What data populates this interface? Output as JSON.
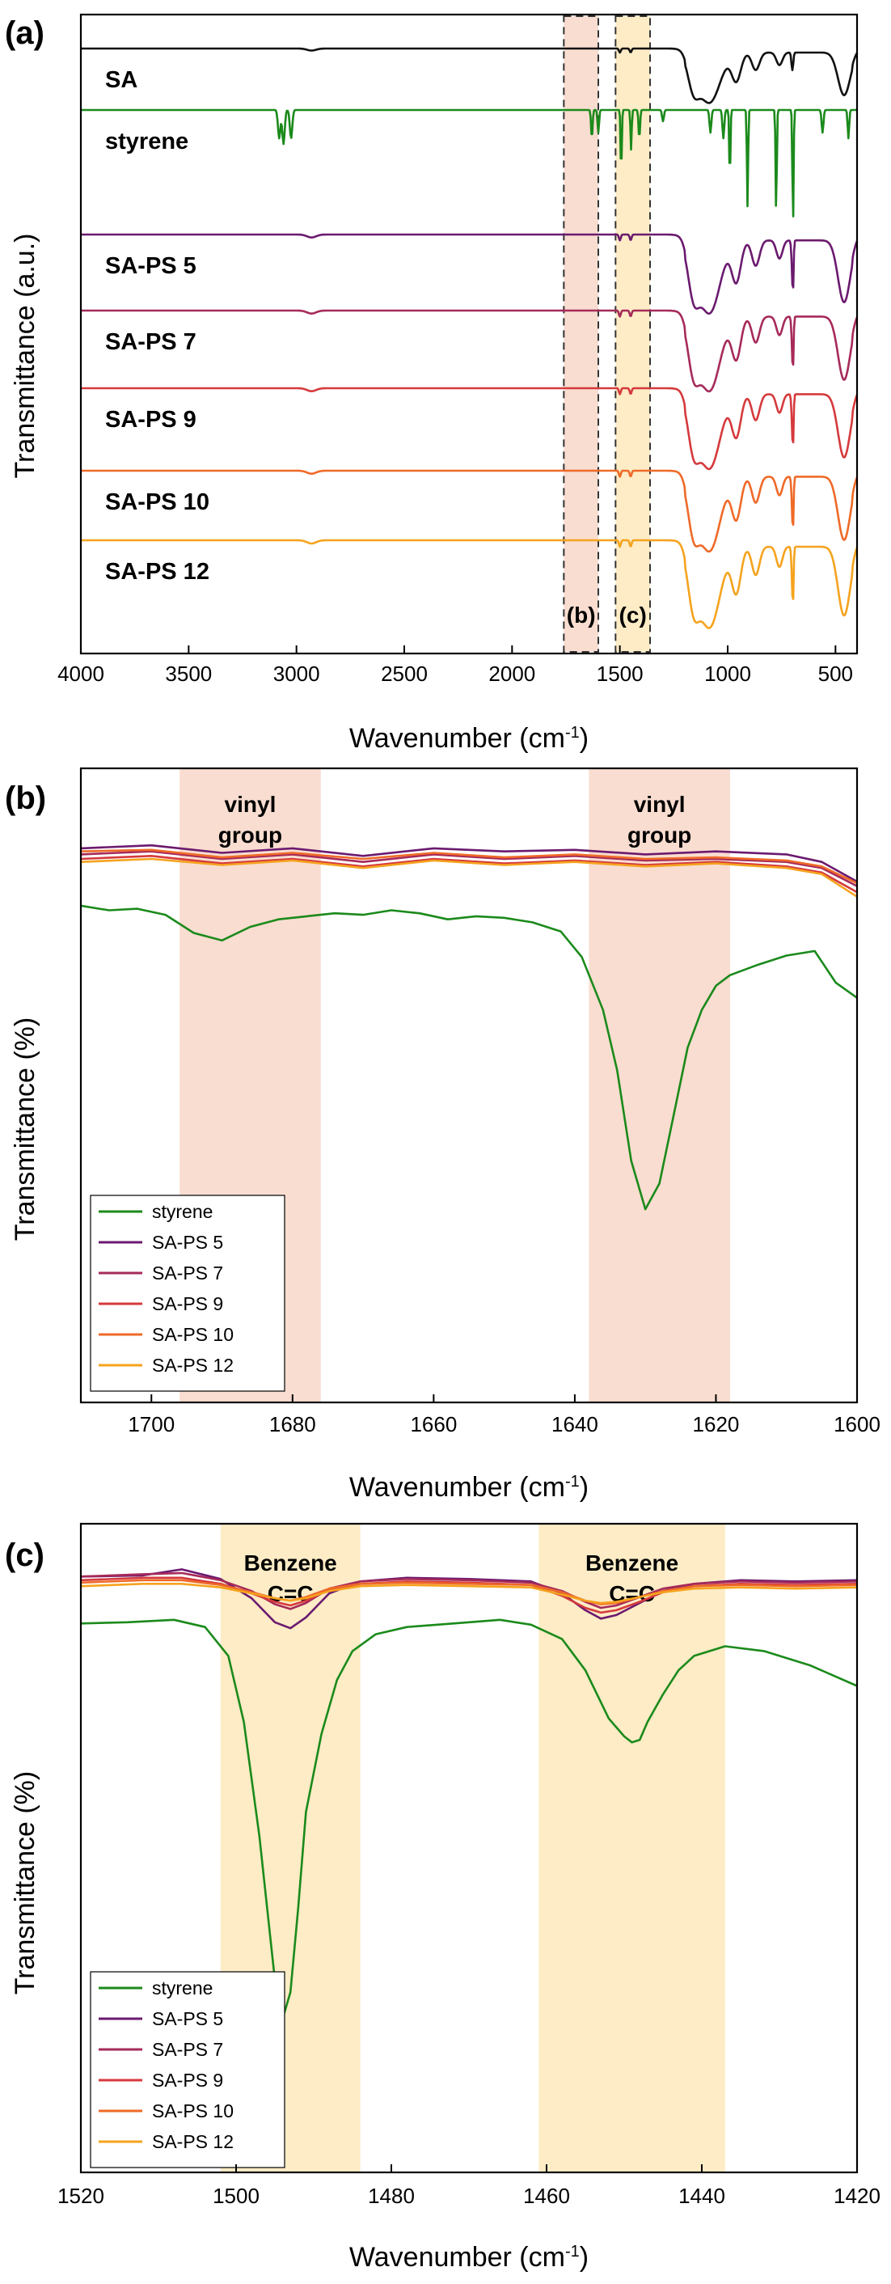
{
  "colors": {
    "SA": "#111111",
    "styrene": "#1b8a1b",
    "SA-PS 5": "#6b1a6f",
    "SA-PS 7": "#a62a5a",
    "SA-PS 9": "#d53a3d",
    "SA-PS 10": "#ef6a28",
    "SA-PS 12": "#f5a31e",
    "vinyl_band": "#f9ddd0",
    "benzene_band": "#fdecc6"
  },
  "chart_data": [
    {
      "panel_label": "(a)",
      "type": "line",
      "xlabel": "Wavenumber (cm",
      "xlabel_sup": "-1",
      "xlabel_end": ")",
      "ylabel": "Transmittance (a.u.)",
      "xlim": [
        4000,
        400
      ],
      "x_ticks": [
        "4000",
        "3500",
        "3000",
        "2500",
        "2000",
        "1500",
        "1000",
        "500"
      ],
      "regions": [
        {
          "label": "(b)",
          "x_range": [
            1760,
            1600
          ],
          "style": "dashed box, shaded"
        },
        {
          "label": "(c)",
          "x_range": [
            1520,
            1360
          ],
          "style": "dashed box, shaded"
        }
      ],
      "series": [
        {
          "name": "SA"
        },
        {
          "name": "styrene"
        },
        {
          "name": "SA-PS 5"
        },
        {
          "name": "SA-PS 7"
        },
        {
          "name": "SA-PS 9"
        },
        {
          "name": "SA-PS 10"
        },
        {
          "name": "SA-PS 12"
        }
      ]
    },
    {
      "panel_label": "(b)",
      "type": "line",
      "xlabel": "Wavenumber (cm",
      "xlabel_sup": "-1",
      "xlabel_end": ")",
      "ylabel": "Transmittance (%)",
      "xlim": [
        1710,
        1600
      ],
      "x_ticks": [
        "1700",
        "1680",
        "1660",
        "1640",
        "1620",
        "1600"
      ],
      "bands": [
        {
          "label_line1": "vinyl",
          "label_line2": "group",
          "x_range": [
            1696,
            1676
          ]
        },
        {
          "label_line1": "vinyl",
          "label_line2": "group",
          "x_range": [
            1638,
            1618
          ]
        }
      ],
      "legend": [
        "styrene",
        "SA-PS 5",
        "SA-PS 7",
        "SA-PS 9",
        "SA-PS 10",
        "SA-PS 12"
      ],
      "legend_position": "bottom-left",
      "series": [
        {
          "name": "styrene",
          "x": [
            1710,
            1706,
            1702,
            1698,
            1694,
            1690,
            1686,
            1682,
            1678,
            1674,
            1670,
            1666,
            1662,
            1658,
            1654,
            1650,
            1646,
            1642,
            1639,
            1636,
            1634,
            1632,
            1630,
            1628,
            1626,
            1624,
            1622,
            1620,
            1618,
            1614,
            1610,
            1606,
            1603,
            1600
          ],
          "y": [
            94.9,
            94.6,
            94.7,
            94.3,
            93.1,
            92.6,
            93.5,
            94.0,
            94.2,
            94.4,
            94.3,
            94.6,
            94.4,
            94.0,
            94.2,
            94.1,
            93.8,
            93.2,
            91.5,
            88.0,
            84.0,
            78.0,
            74.8,
            76.5,
            81.0,
            85.5,
            88.0,
            89.6,
            90.3,
            91.0,
            91.6,
            91.9,
            89.8,
            88.8
          ]
        },
        {
          "name": "SA-PS 5",
          "x": [
            1710,
            1700,
            1690,
            1680,
            1670,
            1660,
            1650,
            1640,
            1630,
            1620,
            1610,
            1605,
            1600
          ],
          "y": [
            98.7,
            98.9,
            98.4,
            98.7,
            98.2,
            98.7,
            98.5,
            98.6,
            98.3,
            98.5,
            98.3,
            97.8,
            96.5
          ]
        },
        {
          "name": "SA-PS 7",
          "x": [
            1710,
            1700,
            1690,
            1680,
            1670,
            1660,
            1650,
            1640,
            1630,
            1620,
            1610,
            1605,
            1600
          ],
          "y": [
            98.3,
            98.5,
            98.0,
            98.3,
            97.8,
            98.3,
            98.0,
            98.2,
            97.9,
            98.0,
            97.8,
            97.4,
            96.2
          ]
        },
        {
          "name": "SA-PS 9",
          "x": [
            1710,
            1700,
            1690,
            1680,
            1670,
            1660,
            1650,
            1640,
            1630,
            1620,
            1610,
            1605,
            1600
          ],
          "y": [
            98.0,
            98.2,
            97.7,
            98.0,
            97.5,
            98.0,
            97.7,
            97.9,
            97.6,
            97.8,
            97.5,
            97.1,
            95.8
          ]
        },
        {
          "name": "SA-PS 10",
          "x": [
            1710,
            1700,
            1690,
            1680,
            1670,
            1660,
            1650,
            1640,
            1630,
            1620,
            1610,
            1605,
            1600
          ],
          "y": [
            98.5,
            98.6,
            98.1,
            98.4,
            98.0,
            98.4,
            98.1,
            98.3,
            98.0,
            98.1,
            97.9,
            97.5,
            96.4
          ]
        },
        {
          "name": "SA-PS 12",
          "x": [
            1710,
            1700,
            1690,
            1680,
            1670,
            1660,
            1650,
            1640,
            1630,
            1620,
            1610,
            1605,
            1600
          ],
          "y": [
            97.8,
            98.0,
            97.6,
            97.9,
            97.4,
            97.9,
            97.6,
            97.8,
            97.5,
            97.7,
            97.4,
            97.0,
            95.5
          ]
        }
      ]
    },
    {
      "panel_label": "(c)",
      "type": "line",
      "xlabel": "Wavenumber (cm",
      "xlabel_sup": "-1",
      "xlabel_end": ")",
      "ylabel": "Transmittance (%)",
      "xlim": [
        1520,
        1420
      ],
      "x_ticks": [
        "1520",
        "1500",
        "1480",
        "1460",
        "1440",
        "1420"
      ],
      "bands": [
        {
          "label_line1": "Benzene",
          "label_line2": "C=C",
          "x_range": [
            1502,
            1484
          ]
        },
        {
          "label_line1": "Benzene",
          "label_line2": "C=C",
          "x_range": [
            1461,
            1437
          ]
        }
      ],
      "legend": [
        "styrene",
        "SA-PS 5",
        "SA-PS 7",
        "SA-PS 9",
        "SA-PS 10",
        "SA-PS 12"
      ],
      "legend_position": "bottom-left",
      "series": [
        {
          "name": "styrene",
          "x": [
            1520,
            1514,
            1508,
            1504,
            1501,
            1499,
            1497,
            1495,
            1494,
            1493,
            1492,
            1491,
            1489,
            1487,
            1485,
            1482,
            1478,
            1472,
            1466,
            1462,
            1458,
            1455,
            1452,
            1450,
            1449,
            1448,
            1447,
            1445,
            1443,
            1441,
            1437,
            1432,
            1426,
            1420
          ],
          "y": [
            95.7,
            95.8,
            96.0,
            95.4,
            93.0,
            87.5,
            78.0,
            66.0,
            62.8,
            65.0,
            72.0,
            80.0,
            86.5,
            91.0,
            93.4,
            94.8,
            95.4,
            95.7,
            96.0,
            95.6,
            94.4,
            91.8,
            87.8,
            86.3,
            85.8,
            86.0,
            87.5,
            89.8,
            91.8,
            93.0,
            93.8,
            93.4,
            92.2,
            90.5
          ]
        },
        {
          "name": "SA-PS 5",
          "x": [
            1520,
            1512,
            1507,
            1502,
            1498,
            1495,
            1493,
            1491,
            1488,
            1484,
            1478,
            1470,
            1462,
            1458,
            1455,
            1453,
            1451,
            1448,
            1445,
            1441,
            1435,
            1428,
            1420
          ],
          "y": [
            99.6,
            99.7,
            100.2,
            99.4,
            97.8,
            95.8,
            95.3,
            96.2,
            98.2,
            99.2,
            99.5,
            99.4,
            99.2,
            98.2,
            96.8,
            96.1,
            96.4,
            97.4,
            98.4,
            99.0,
            99.3,
            99.2,
            99.3
          ]
        },
        {
          "name": "SA-PS 7",
          "x": [
            1520,
            1512,
            1507,
            1502,
            1498,
            1495,
            1493,
            1491,
            1488,
            1484,
            1478,
            1470,
            1462,
            1458,
            1455,
            1453,
            1451,
            1448,
            1445,
            1441,
            1435,
            1428,
            1420
          ],
          "y": [
            99.6,
            99.8,
            99.9,
            99.3,
            98.4,
            97.3,
            96.9,
            97.4,
            98.6,
            99.2,
            99.4,
            99.3,
            99.1,
            98.4,
            97.5,
            97.0,
            97.2,
            97.9,
            98.6,
            99.0,
            99.2,
            99.1,
            99.2
          ]
        },
        {
          "name": "SA-PS 9",
          "x": [
            1520,
            1512,
            1507,
            1502,
            1498,
            1495,
            1493,
            1491,
            1488,
            1484,
            1478,
            1470,
            1462,
            1458,
            1455,
            1453,
            1451,
            1448,
            1445,
            1441,
            1435,
            1428,
            1420
          ],
          "y": [
            99.3,
            99.5,
            99.5,
            99.0,
            98.2,
            97.5,
            97.2,
            97.6,
            98.5,
            99.0,
            99.2,
            99.1,
            98.9,
            98.0,
            97.0,
            96.6,
            96.8,
            97.5,
            98.3,
            98.8,
            99.0,
            98.9,
            99.0
          ]
        },
        {
          "name": "SA-PS 10",
          "x": [
            1520,
            1512,
            1507,
            1502,
            1498,
            1495,
            1493,
            1491,
            1488,
            1484,
            1478,
            1470,
            1462,
            1458,
            1455,
            1453,
            1451,
            1448,
            1445,
            1441,
            1435,
            1428,
            1420
          ],
          "y": [
            99.1,
            99.3,
            99.3,
            98.9,
            98.3,
            97.8,
            97.6,
            97.9,
            98.6,
            99.0,
            99.1,
            99.0,
            98.9,
            98.3,
            97.6,
            97.3,
            97.4,
            97.9,
            98.4,
            98.8,
            98.9,
            98.8,
            98.9
          ]
        },
        {
          "name": "SA-PS 12",
          "x": [
            1520,
            1512,
            1507,
            1502,
            1498,
            1495,
            1493,
            1491,
            1488,
            1484,
            1478,
            1470,
            1462,
            1458,
            1455,
            1453,
            1451,
            1448,
            1445,
            1441,
            1435,
            1428,
            1420
          ],
          "y": [
            98.8,
            99.0,
            99.0,
            98.7,
            98.2,
            97.8,
            97.6,
            97.8,
            98.4,
            98.8,
            98.9,
            98.8,
            98.7,
            98.1,
            97.6,
            97.4,
            97.5,
            97.9,
            98.3,
            98.6,
            98.7,
            98.6,
            98.7
          ]
        }
      ]
    }
  ]
}
